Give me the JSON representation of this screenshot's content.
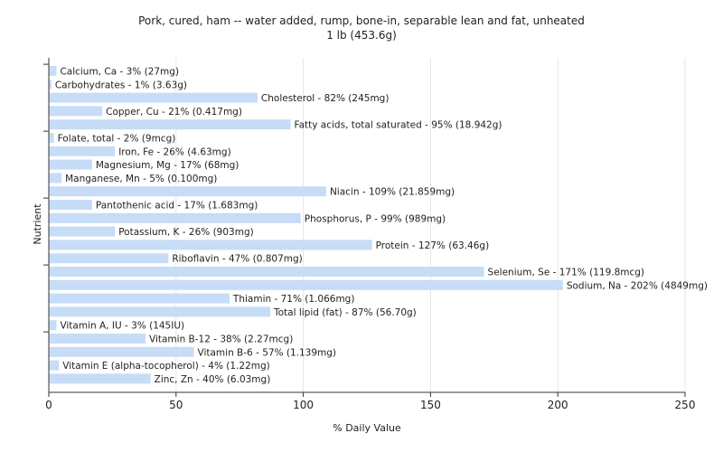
{
  "chart_data": {
    "type": "bar",
    "orientation": "horizontal",
    "title": "Pork, cured, ham -- water added, rump, bone-in, separable lean and fat, unheated",
    "subtitle": "1 lb (453.6g)",
    "xlabel": "% Daily Value",
    "ylabel": "Nutrient",
    "xlim": [
      0,
      250
    ],
    "xticks": [
      0,
      50,
      100,
      150,
      200,
      250
    ],
    "grid": "vertical",
    "bar_color": "#c6dcf7",
    "categories": [
      "Calcium, Ca",
      "Carbohydrates",
      "Cholesterol",
      "Copper, Cu",
      "Fatty acids, total saturated",
      "Folate, total",
      "Iron, Fe",
      "Magnesium, Mg",
      "Manganese, Mn",
      "Niacin",
      "Pantothenic acid",
      "Phosphorus, P",
      "Potassium, K",
      "Protein",
      "Riboflavin",
      "Selenium, Se",
      "Sodium, Na",
      "Thiamin",
      "Total lipid (fat)",
      "Vitamin A, IU",
      "Vitamin B-12",
      "Vitamin B-6",
      "Vitamin E (alpha-tocopherol)",
      "Zinc, Zn"
    ],
    "values": [
      3,
      1,
      82,
      21,
      95,
      2,
      26,
      17,
      5,
      109,
      17,
      99,
      26,
      127,
      47,
      171,
      202,
      71,
      87,
      3,
      38,
      57,
      4,
      40
    ],
    "labels": [
      "Calcium, Ca - 3% (27mg)",
      "Carbohydrates - 1% (3.63g)",
      "Cholesterol - 82% (245mg)",
      "Copper, Cu - 21% (0.417mg)",
      "Fatty acids, total saturated - 95% (18.942g)",
      "Folate, total - 2% (9mcg)",
      "Iron, Fe - 26% (4.63mg)",
      "Magnesium, Mg - 17% (68mg)",
      "Manganese, Mn - 5% (0.100mg)",
      "Niacin - 109% (21.859mg)",
      "Pantothenic acid - 17% (1.683mg)",
      "Phosphorus, P - 99% (989mg)",
      "Potassium, K - 26% (903mg)",
      "Protein - 127% (63.46g)",
      "Riboflavin - 47% (0.807mg)",
      "Selenium, Se - 171% (119.8mcg)",
      "Sodium, Na - 202% (4849mg)",
      "Thiamin - 71% (1.066mg)",
      "Total lipid (fat) - 87% (56.70g)",
      "Vitamin A, IU - 3% (145IU)",
      "Vitamin B-12 - 38% (2.27mcg)",
      "Vitamin B-6 - 57% (1.139mg)",
      "Vitamin E (alpha-tocopherol) - 4% (1.22mg)",
      "Zinc, Zn - 40% (6.03mg)"
    ]
  }
}
